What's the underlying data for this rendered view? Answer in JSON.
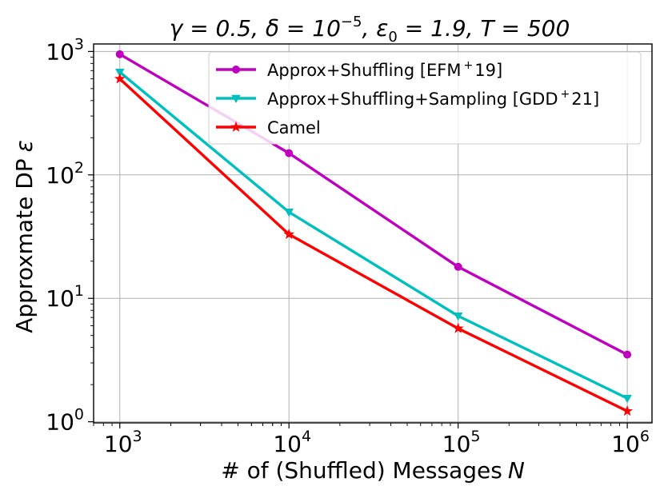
{
  "chart_data": {
    "type": "line",
    "title": "γ = 0.5, δ = 10^−5, ε₀ = 1.9, T = 500",
    "title_parts": {
      "gamma": "γ = 0.5, ",
      "delta": "δ = 10",
      "delta_exp": "−5",
      "eps": ", ε",
      "eps_sub": "0",
      "rest": " = 1.9, T = 500"
    },
    "xlabel": "# of (Shuffled) Messages",
    "xlabel_var": "N",
    "ylabel": "Approxmate DP",
    "ylabel_var": "ε",
    "xscale": "log",
    "yscale": "log",
    "xlim": [
      700,
      1400000
    ],
    "ylim": [
      0.98,
      1150
    ],
    "grid": true,
    "legend_position": "top-right",
    "x": [
      1000,
      10000,
      100000,
      1000000
    ],
    "x_tick_labels": [
      {
        "base": "10",
        "exp": "3"
      },
      {
        "base": "10",
        "exp": "4"
      },
      {
        "base": "10",
        "exp": "5"
      },
      {
        "base": "10",
        "exp": "6"
      }
    ],
    "y_tick_labels": [
      {
        "base": "10",
        "exp": "0"
      },
      {
        "base": "10",
        "exp": "1"
      },
      {
        "base": "10",
        "exp": "2"
      },
      {
        "base": "10",
        "exp": "3"
      }
    ],
    "series": [
      {
        "name": "Approx+Shuffling [EFM⁺19]",
        "label_main": "Approx+Shuffling [EFM",
        "label_sup": "+",
        "label_end": "19]",
        "color": "#bf00bf",
        "marker": "circle",
        "values": [
          950,
          150,
          18,
          3.5
        ]
      },
      {
        "name": "Approx+Shuffling+Sampling [GDD⁺21]",
        "label_main": "Approx+Shuffling+Sampling [GDD",
        "label_sup": "+",
        "label_end": "21]",
        "color": "#00bfbf",
        "marker": "triangle-down",
        "values": [
          680,
          50,
          7.2,
          1.55
        ]
      },
      {
        "name": "Camel",
        "label_main": "Camel",
        "label_sup": "",
        "label_end": "",
        "color": "#ff0000",
        "marker": "star",
        "values": [
          600,
          33,
          5.7,
          1.22
        ]
      }
    ]
  }
}
